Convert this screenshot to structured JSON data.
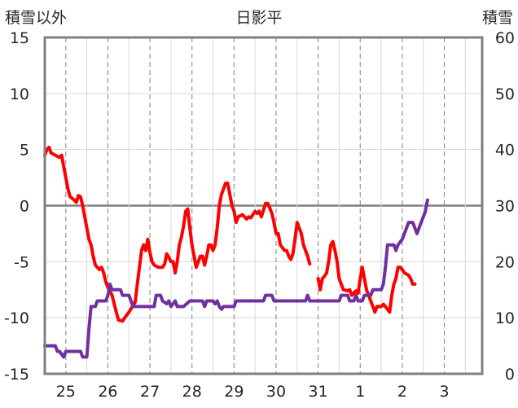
{
  "chart_data": {
    "type": "line",
    "title": "日影平",
    "ylabel_left": "積雪以外",
    "ylabel_right": "積雪",
    "ylim_left": [
      -15,
      15
    ],
    "ylim_right": [
      0,
      60
    ],
    "yticks_left": [
      "15",
      "10",
      "5",
      "0",
      "-5",
      "-10",
      "-15"
    ],
    "yticks_right": [
      "60",
      "50",
      "40",
      "30",
      "20",
      "10",
      "0"
    ],
    "xlim": [
      0,
      10.4
    ],
    "day_ticks": [
      {
        "x": 0.5,
        "label": "25"
      },
      {
        "x": 1.5,
        "label": "26"
      },
      {
        "x": 2.5,
        "label": "27"
      },
      {
        "x": 3.5,
        "label": "28"
      },
      {
        "x": 4.5,
        "label": "29"
      },
      {
        "x": 5.5,
        "label": "30"
      },
      {
        "x": 6.5,
        "label": "31"
      },
      {
        "x": 7.5,
        "label": "1"
      },
      {
        "x": 8.5,
        "label": "2"
      },
      {
        "x": 9.5,
        "label": "3"
      }
    ],
    "day_boundaries": [
      1,
      2,
      3,
      4,
      5,
      6,
      7,
      8,
      9,
      10
    ],
    "grid": true,
    "series": [
      {
        "axis": "left",
        "color": "#ff0000",
        "segments": [
          [
            [
              0,
              4.5
            ],
            [
              0.05,
              5
            ],
            [
              0.1,
              5.2
            ],
            [
              0.15,
              4.7
            ],
            [
              0.25,
              4.5
            ],
            [
              0.35,
              4.3
            ],
            [
              0.4,
              4.5
            ],
            [
              0.45,
              3.5
            ],
            [
              0.5,
              2.5
            ],
            [
              0.55,
              1.5
            ],
            [
              0.6,
              0.8
            ],
            [
              0.7,
              0.5
            ],
            [
              0.75,
              0.3
            ],
            [
              0.8,
              0.9
            ],
            [
              0.85,
              0.8
            ],
            [
              0.9,
              0
            ],
            [
              0.95,
              -1
            ],
            [
              1.0,
              -2
            ],
            [
              1.05,
              -3
            ],
            [
              1.1,
              -3.5
            ],
            [
              1.15,
              -4.5
            ],
            [
              1.2,
              -5.3
            ],
            [
              1.3,
              -5.7
            ],
            [
              1.35,
              -5.5
            ],
            [
              1.4,
              -6
            ],
            [
              1.45,
              -6.8
            ],
            [
              1.5,
              -7.3
            ],
            [
              1.6,
              -8
            ],
            [
              1.7,
              -9.5
            ],
            [
              1.75,
              -10.2
            ],
            [
              1.85,
              -10.3
            ],
            [
              1.9,
              -10
            ],
            [
              2.0,
              -9.5
            ],
            [
              2.05,
              -9.2
            ],
            [
              2.1,
              -8.9
            ],
            [
              2.15,
              -8.6
            ],
            [
              2.2,
              -7
            ],
            [
              2.25,
              -5.5
            ],
            [
              2.3,
              -4
            ],
            [
              2.35,
              -3.5
            ],
            [
              2.4,
              -4
            ],
            [
              2.45,
              -3
            ],
            [
              2.5,
              -4.2
            ],
            [
              2.55,
              -5
            ],
            [
              2.6,
              -5.3
            ],
            [
              2.7,
              -5.5
            ],
            [
              2.8,
              -5.5
            ],
            [
              2.85,
              -5.2
            ],
            [
              2.9,
              -4.3
            ],
            [
              2.95,
              -4.6
            ],
            [
              3.0,
              -5
            ],
            [
              3.05,
              -5
            ],
            [
              3.1,
              -6
            ],
            [
              3.15,
              -5
            ],
            [
              3.2,
              -3.5
            ],
            [
              3.25,
              -2.8
            ],
            [
              3.3,
              -1.8
            ],
            [
              3.35,
              -0.5
            ],
            [
              3.4,
              -0.3
            ],
            [
              3.45,
              -2
            ],
            [
              3.5,
              -3.5
            ],
            [
              3.55,
              -4.5
            ],
            [
              3.6,
              -5.5
            ],
            [
              3.65,
              -5
            ],
            [
              3.7,
              -4.5
            ],
            [
              3.75,
              -4.5
            ],
            [
              3.8,
              -5.3
            ],
            [
              3.85,
              -4.5
            ],
            [
              3.9,
              -3.5
            ],
            [
              3.95,
              -3.5
            ],
            [
              4.0,
              -4
            ],
            [
              4.05,
              -3.5
            ],
            [
              4.1,
              -2
            ],
            [
              4.15,
              0
            ],
            [
              4.2,
              1
            ],
            [
              4.3,
              2
            ],
            [
              4.35,
              2
            ],
            [
              4.4,
              1
            ],
            [
              4.45,
              0
            ],
            [
              4.5,
              -0.5
            ],
            [
              4.55,
              -1.5
            ],
            [
              4.6,
              -1
            ],
            [
              4.7,
              -0.8
            ],
            [
              4.75,
              -1
            ],
            [
              4.8,
              -1.2
            ],
            [
              4.85,
              -1
            ],
            [
              4.9,
              -1.1
            ],
            [
              5.0,
              -0.5
            ],
            [
              5.05,
              -0.7
            ],
            [
              5.1,
              -0.5
            ],
            [
              5.15,
              -1
            ],
            [
              5.2,
              -0.4
            ],
            [
              5.25,
              0.2
            ],
            [
              5.3,
              0.2
            ],
            [
              5.35,
              -0.2
            ],
            [
              5.4,
              -0.7
            ],
            [
              5.45,
              -1.5
            ],
            [
              5.5,
              -2.5
            ],
            [
              5.55,
              -2.5
            ],
            [
              5.6,
              -3.5
            ],
            [
              5.7,
              -4
            ],
            [
              5.75,
              -4
            ],
            [
              5.8,
              -4.5
            ],
            [
              5.85,
              -4.8
            ],
            [
              5.9,
              -4.3
            ],
            [
              5.95,
              -3
            ],
            [
              6.0,
              -1.5
            ],
            [
              6.05,
              -2
            ],
            [
              6.1,
              -2.5
            ],
            [
              6.15,
              -3.5
            ],
            [
              6.2,
              -4
            ],
            [
              6.25,
              -4.5
            ],
            [
              6.3,
              -5.2
            ]
          ],
          [
            [
              6.5,
              -6.5
            ],
            [
              6.55,
              -7.5
            ],
            [
              6.6,
              -6.5
            ],
            [
              6.65,
              -6.3
            ],
            [
              6.7,
              -6
            ],
            [
              6.75,
              -5
            ],
            [
              6.8,
              -3.5
            ],
            [
              6.85,
              -3.2
            ],
            [
              6.9,
              -4
            ],
            [
              6.95,
              -5
            ],
            [
              7.0,
              -6.5
            ],
            [
              7.05,
              -7
            ],
            [
              7.1,
              -7.5
            ],
            [
              7.2,
              -7.6
            ],
            [
              7.25,
              -7.5
            ],
            [
              7.3,
              -8
            ],
            [
              7.35,
              -7.8
            ],
            [
              7.4,
              -7.6
            ],
            [
              7.45,
              -7.8
            ],
            [
              7.5,
              -6.5
            ],
            [
              7.55,
              -5.5
            ],
            [
              7.6,
              -6.5
            ],
            [
              7.65,
              -7.5
            ],
            [
              7.7,
              -8
            ],
            [
              7.75,
              -8.5
            ],
            [
              7.8,
              -9
            ],
            [
              7.85,
              -9.5
            ],
            [
              7.9,
              -9
            ],
            [
              8.0,
              -9
            ],
            [
              8.05,
              -8.8
            ],
            [
              8.1,
              -9
            ],
            [
              8.2,
              -9.5
            ],
            [
              8.25,
              -8
            ],
            [
              8.3,
              -7
            ],
            [
              8.35,
              -6.5
            ],
            [
              8.4,
              -5.5
            ],
            [
              8.45,
              -5.5
            ],
            [
              8.5,
              -5.7
            ],
            [
              8.55,
              -6
            ],
            [
              8.65,
              -6.2
            ],
            [
              8.7,
              -6.5
            ],
            [
              8.75,
              -7
            ],
            [
              8.8,
              -7
            ]
          ]
        ]
      },
      {
        "axis": "right",
        "color": "#7030a0",
        "segments": [
          [
            [
              0,
              5
            ],
            [
              0.25,
              5
            ],
            [
              0.3,
              4
            ],
            [
              0.35,
              4
            ],
            [
              0.45,
              3
            ],
            [
              0.5,
              4
            ],
            [
              0.85,
              4
            ],
            [
              0.9,
              3
            ],
            [
              1.0,
              3
            ],
            [
              1.05,
              8
            ],
            [
              1.1,
              12
            ],
            [
              1.2,
              12
            ],
            [
              1.25,
              13
            ],
            [
              1.45,
              13
            ],
            [
              1.5,
              14
            ],
            [
              1.55,
              16
            ],
            [
              1.6,
              15
            ],
            [
              1.8,
              15
            ],
            [
              1.85,
              14
            ],
            [
              2.0,
              14
            ],
            [
              2.05,
              13
            ],
            [
              2.1,
              12
            ],
            [
              2.6,
              12
            ],
            [
              2.65,
              14
            ],
            [
              2.75,
              14
            ],
            [
              2.8,
              13
            ],
            [
              2.9,
              12.5
            ],
            [
              2.95,
              13
            ],
            [
              3.0,
              12
            ],
            [
              3.1,
              13
            ],
            [
              3.15,
              12
            ],
            [
              3.3,
              12
            ],
            [
              3.45,
              13
            ],
            [
              3.75,
              13
            ],
            [
              3.8,
              12
            ],
            [
              3.85,
              13
            ],
            [
              4.0,
              13
            ],
            [
              4.05,
              12.5
            ],
            [
              4.1,
              13
            ],
            [
              4.15,
              12
            ],
            [
              4.2,
              11.5
            ],
            [
              4.25,
              12
            ],
            [
              4.5,
              12
            ],
            [
              4.55,
              13
            ],
            [
              5.2,
              13
            ],
            [
              5.25,
              14
            ],
            [
              5.4,
              14
            ],
            [
              5.45,
              13
            ],
            [
              6.2,
              13
            ],
            [
              6.25,
              14
            ],
            [
              6.3,
              13
            ],
            [
              7.0,
              13
            ],
            [
              7.05,
              14
            ],
            [
              7.2,
              14
            ],
            [
              7.25,
              13
            ],
            [
              7.35,
              13
            ],
            [
              7.4,
              14
            ],
            [
              7.45,
              13
            ],
            [
              7.55,
              13
            ],
            [
              7.6,
              14
            ],
            [
              7.75,
              14
            ],
            [
              7.8,
              15
            ],
            [
              8.0,
              15
            ],
            [
              8.05,
              16
            ],
            [
              8.1,
              19
            ],
            [
              8.15,
              23
            ],
            [
              8.3,
              23
            ],
            [
              8.35,
              22
            ],
            [
              8.4,
              23
            ],
            [
              8.5,
              24
            ],
            [
              8.55,
              25
            ],
            [
              8.6,
              26
            ],
            [
              8.65,
              27
            ],
            [
              8.75,
              27
            ],
            [
              8.8,
              26
            ],
            [
              8.85,
              25
            ],
            [
              8.9,
              26
            ],
            [
              8.95,
              27
            ],
            [
              9.0,
              28
            ],
            [
              9.05,
              29
            ],
            [
              9.1,
              31
            ]
          ]
        ]
      }
    ]
  }
}
